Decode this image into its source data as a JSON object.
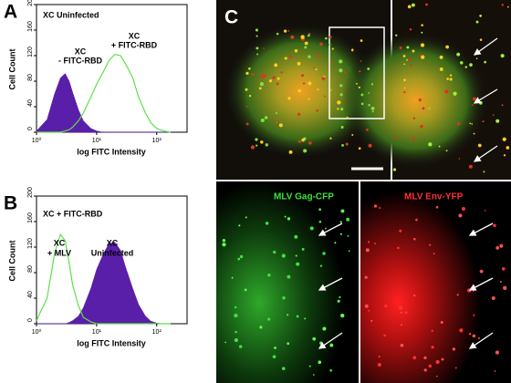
{
  "chart_data": [
    {
      "type": "histogram",
      "panel": "A",
      "title": "XC Uninfected",
      "xlabel": "log FITC Intensity",
      "ylabel": "Cell Count",
      "log_x": true,
      "xlim": [
        1,
        320
      ],
      "xticks": [
        {
          "value": 1,
          "label": "10⁰"
        },
        {
          "value": 10,
          "label": "10¹"
        },
        {
          "value": 100,
          "label": "10²"
        }
      ],
      "ylim": [
        0,
        200
      ],
      "yticks": [
        0,
        40,
        80,
        120,
        160,
        200
      ],
      "x": [
        1,
        1.5,
        2,
        2.5,
        3,
        3.5,
        4,
        5,
        6,
        8,
        10,
        13,
        16,
        20,
        25,
        30,
        40,
        50,
        65,
        80,
        100,
        130,
        170
      ],
      "series": [
        {
          "color": "#5a1fa8",
          "filled": true,
          "values": [
            2,
            20,
            60,
            85,
            92,
            80,
            62,
            35,
            18,
            6,
            2,
            0,
            0,
            0,
            0,
            0,
            0,
            0,
            0,
            0,
            0,
            0,
            0
          ]
        },
        {
          "color": "#5ee04a",
          "filled": false,
          "values": [
            0,
            0,
            0,
            0,
            2,
            4,
            8,
            18,
            30,
            55,
            75,
            95,
            112,
            122,
            120,
            108,
            85,
            55,
            30,
            15,
            6,
            2,
            0
          ]
        }
      ],
      "annotations": [
        [
          "XC",
          "- FITC-RBD"
        ],
        [
          "XC",
          "+ FITC-RBD"
        ]
      ]
    },
    {
      "type": "histogram",
      "panel": "B",
      "title": "XC + FITC-RBD",
      "xlabel": "log FITC Intensity",
      "ylabel": "Cell Count",
      "log_x": true,
      "xlim": [
        1,
        320
      ],
      "xticks": [
        {
          "value": 1,
          "label": "10⁰"
        },
        {
          "value": 10,
          "label": "10¹"
        },
        {
          "value": 100,
          "label": "10²"
        }
      ],
      "ylim": [
        0,
        200
      ],
      "yticks": [
        0,
        40,
        80,
        120,
        160,
        200
      ],
      "x": [
        1,
        1.5,
        2,
        2.5,
        3,
        3.5,
        4,
        5,
        6,
        8,
        10,
        13,
        16,
        20,
        25,
        30,
        40,
        50,
        65,
        80,
        100,
        130,
        170
      ],
      "series": [
        {
          "color": "#5a1fa8",
          "filled": true,
          "values": [
            0,
            0,
            0,
            0,
            0,
            2,
            5,
            12,
            25,
            55,
            85,
            110,
            125,
            128,
            115,
            90,
            55,
            30,
            12,
            4,
            1,
            0,
            0
          ]
        },
        {
          "color": "#5ee04a",
          "filled": false,
          "values": [
            5,
            40,
            110,
            140,
            130,
            95,
            60,
            28,
            10,
            3,
            0,
            0,
            0,
            0,
            0,
            0,
            0,
            0,
            0,
            0,
            0,
            0,
            0
          ]
        }
      ],
      "annotations": [
        [
          "XC",
          "+ MLV"
        ],
        [
          "XC",
          "Uninfected"
        ]
      ]
    }
  ],
  "panel_c": {
    "label": "C",
    "gag_label": "MLV Gag-CFP",
    "env_label": "MLV Env-YFP"
  }
}
